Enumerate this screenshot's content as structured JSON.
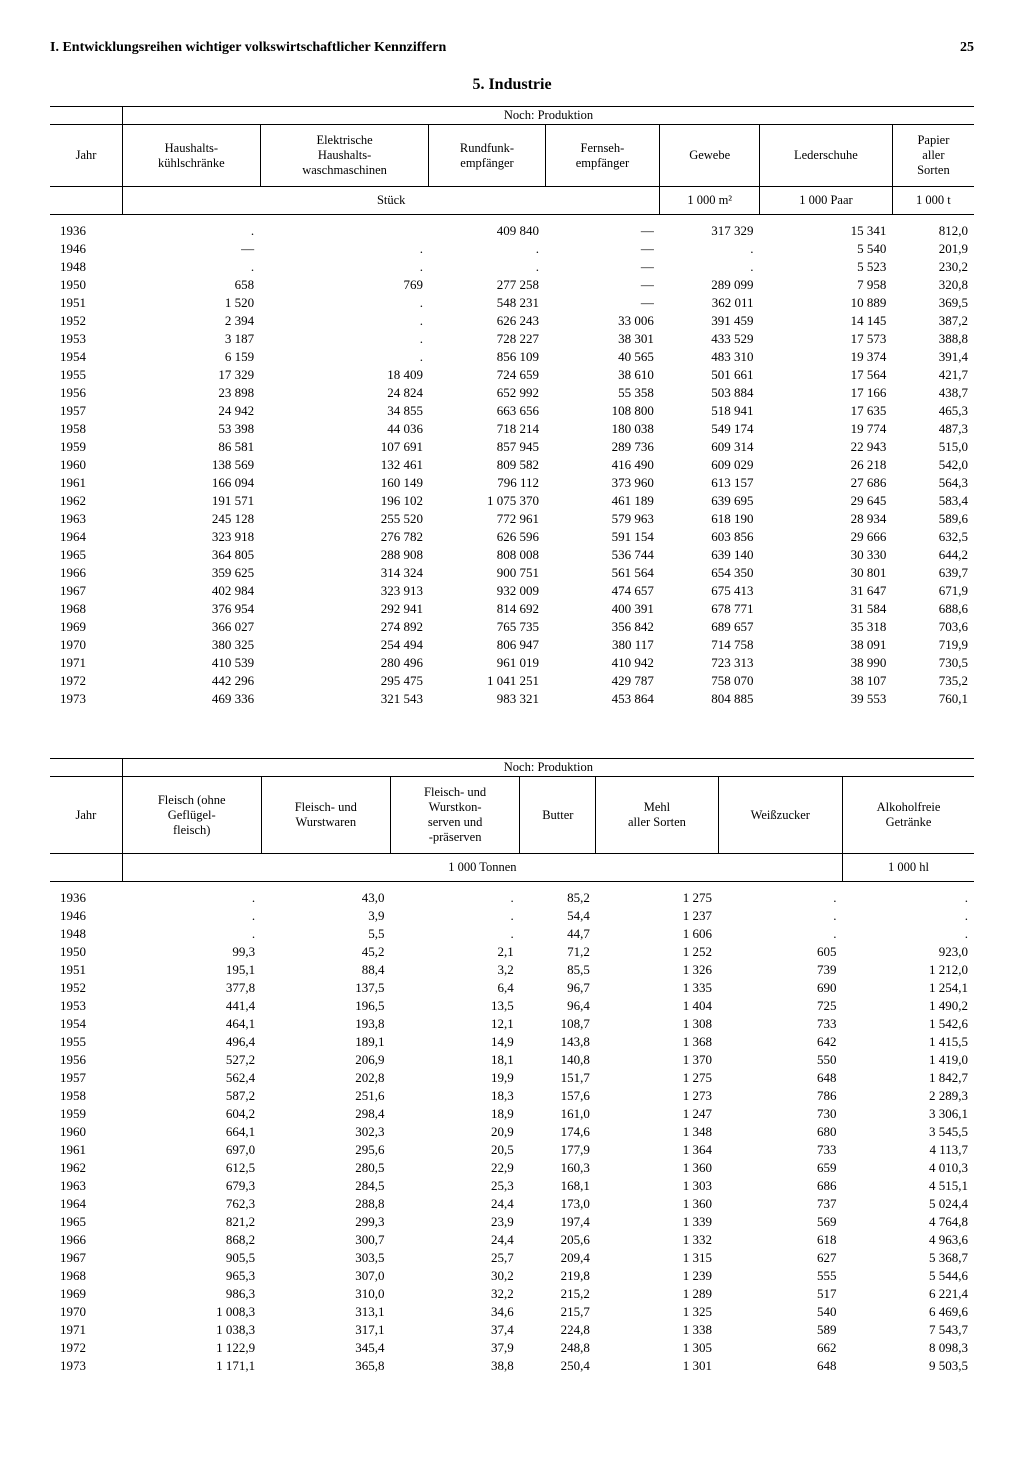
{
  "header": {
    "running_title": "I. Entwicklungsreihen wichtiger volkswirtschaftlicher Kennziffern",
    "page_number": "25",
    "section_title": "5. Industrie"
  },
  "table1": {
    "group_title": "Noch: Produktion",
    "col_year": "Jahr",
    "columns": [
      "Haushalts-\nkühlschränke",
      "Elektrische\nHaushalts-\nwaschmaschinen",
      "Rundfunk-\nempfänger",
      "Fernseh-\nempfänger",
      "Gewebe",
      "Lederschuhe",
      "Papier\naller\nSorten"
    ],
    "unit_group1": "Stück",
    "unit_gewebe": "1 000 m²",
    "unit_leder": "1 000 Paar",
    "unit_papier": "1 000 t",
    "rows": [
      [
        "1936",
        ".",
        "",
        "409 840",
        "—",
        "317 329",
        "15 341",
        "812,0"
      ],
      [
        "1946",
        "—",
        ".",
        ".",
        "—",
        ".",
        "5 540",
        "201,9"
      ],
      [
        "1948",
        ".",
        ".",
        ".",
        "—",
        ".",
        "5 523",
        "230,2"
      ],
      [
        "1950",
        "658",
        "769",
        "277 258",
        "—",
        "289 099",
        "7 958",
        "320,8"
      ],
      [
        "1951",
        "1 520",
        ".",
        "548 231",
        "—",
        "362 011",
        "10 889",
        "369,5"
      ],
      [
        "1952",
        "2 394",
        ".",
        "626 243",
        "33 006",
        "391 459",
        "14 145",
        "387,2"
      ],
      [
        "1953",
        "3 187",
        ".",
        "728 227",
        "38 301",
        "433 529",
        "17 573",
        "388,8"
      ],
      [
        "1954",
        "6 159",
        ".",
        "856 109",
        "40 565",
        "483 310",
        "19 374",
        "391,4"
      ],
      [
        "1955",
        "17 329",
        "18 409",
        "724 659",
        "38 610",
        "501 661",
        "17 564",
        "421,7"
      ],
      [
        "1956",
        "23 898",
        "24 824",
        "652 992",
        "55 358",
        "503 884",
        "17 166",
        "438,7"
      ],
      [
        "1957",
        "24 942",
        "34 855",
        "663 656",
        "108 800",
        "518 941",
        "17 635",
        "465,3"
      ],
      [
        "1958",
        "53 398",
        "44 036",
        "718 214",
        "180 038",
        "549 174",
        "19 774",
        "487,3"
      ],
      [
        "1959",
        "86 581",
        "107 691",
        "857 945",
        "289 736",
        "609 314",
        "22 943",
        "515,0"
      ],
      [
        "1960",
        "138 569",
        "132 461",
        "809 582",
        "416 490",
        "609 029",
        "26 218",
        "542,0"
      ],
      [
        "1961",
        "166 094",
        "160 149",
        "796 112",
        "373 960",
        "613 157",
        "27 686",
        "564,3"
      ],
      [
        "1962",
        "191 571",
        "196 102",
        "1 075 370",
        "461 189",
        "639 695",
        "29 645",
        "583,4"
      ],
      [
        "1963",
        "245 128",
        "255 520",
        "772 961",
        "579 963",
        "618 190",
        "28 934",
        "589,6"
      ],
      [
        "1964",
        "323 918",
        "276 782",
        "626 596",
        "591 154",
        "603 856",
        "29 666",
        "632,5"
      ],
      [
        "1965",
        "364 805",
        "288 908",
        "808 008",
        "536 744",
        "639 140",
        "30 330",
        "644,2"
      ],
      [
        "1966",
        "359 625",
        "314 324",
        "900 751",
        "561 564",
        "654 350",
        "30 801",
        "639,7"
      ],
      [
        "1967",
        "402 984",
        "323 913",
        "932 009",
        "474 657",
        "675 413",
        "31 647",
        "671,9"
      ],
      [
        "1968",
        "376 954",
        "292 941",
        "814 692",
        "400 391",
        "678 771",
        "31 584",
        "688,6"
      ],
      [
        "1969",
        "366 027",
        "274 892",
        "765 735",
        "356 842",
        "689 657",
        "35 318",
        "703,6"
      ],
      [
        "1970",
        "380 325",
        "254 494",
        "806 947",
        "380 117",
        "714 758",
        "38 091",
        "719,9"
      ],
      [
        "1971",
        "410 539",
        "280 496",
        "961 019",
        "410 942",
        "723 313",
        "38 990",
        "730,5"
      ],
      [
        "1972",
        "442 296",
        "295 475",
        "1 041 251",
        "429 787",
        "758 070",
        "38 107",
        "735,2"
      ],
      [
        "1973",
        "469 336",
        "321 543",
        "983 321",
        "453 864",
        "804 885",
        "39 553",
        "760,1"
      ]
    ]
  },
  "table2": {
    "group_title": "Noch: Produktion",
    "col_year": "Jahr",
    "columns": [
      "Fleisch (ohne\nGeflügel-\nfleisch)",
      "Fleisch- und\nWurstwaren",
      "Fleisch- und\nWurstkon-\nserven und\n-präserven",
      "Butter",
      "Mehl\naller Sorten",
      "Weißzucker",
      "Alkoholfreie\nGetränke"
    ],
    "unit_group1": "1 000 Tonnen",
    "unit_last": "1 000 hl",
    "rows": [
      [
        "1936",
        ".",
        "43,0",
        ".",
        "85,2",
        "1 275",
        ".",
        "."
      ],
      [
        "1946",
        ".",
        "3,9",
        ".",
        "54,4",
        "1 237",
        ".",
        "."
      ],
      [
        "1948",
        ".",
        "5,5",
        ".",
        "44,7",
        "1 606",
        ".",
        "."
      ],
      [
        "1950",
        "99,3",
        "45,2",
        "2,1",
        "71,2",
        "1 252",
        "605",
        "923,0"
      ],
      [
        "1951",
        "195,1",
        "88,4",
        "3,2",
        "85,5",
        "1 326",
        "739",
        "1 212,0"
      ],
      [
        "1952",
        "377,8",
        "137,5",
        "6,4",
        "96,7",
        "1 335",
        "690",
        "1 254,1"
      ],
      [
        "1953",
        "441,4",
        "196,5",
        "13,5",
        "96,4",
        "1 404",
        "725",
        "1 490,2"
      ],
      [
        "1954",
        "464,1",
        "193,8",
        "12,1",
        "108,7",
        "1 308",
        "733",
        "1 542,6"
      ],
      [
        "1955",
        "496,4",
        "189,1",
        "14,9",
        "143,8",
        "1 368",
        "642",
        "1 415,5"
      ],
      [
        "1956",
        "527,2",
        "206,9",
        "18,1",
        "140,8",
        "1 370",
        "550",
        "1 419,0"
      ],
      [
        "1957",
        "562,4",
        "202,8",
        "19,9",
        "151,7",
        "1 275",
        "648",
        "1 842,7"
      ],
      [
        "1958",
        "587,2",
        "251,6",
        "18,3",
        "157,6",
        "1 273",
        "786",
        "2 289,3"
      ],
      [
        "1959",
        "604,2",
        "298,4",
        "18,9",
        "161,0",
        "1 247",
        "730",
        "3 306,1"
      ],
      [
        "1960",
        "664,1",
        "302,3",
        "20,9",
        "174,6",
        "1 348",
        "680",
        "3 545,5"
      ],
      [
        "1961",
        "697,0",
        "295,6",
        "20,5",
        "177,9",
        "1 364",
        "733",
        "4 113,7"
      ],
      [
        "1962",
        "612,5",
        "280,5",
        "22,9",
        "160,3",
        "1 360",
        "659",
        "4 010,3"
      ],
      [
        "1963",
        "679,3",
        "284,5",
        "25,3",
        "168,1",
        "1 303",
        "686",
        "4 515,1"
      ],
      [
        "1964",
        "762,3",
        "288,8",
        "24,4",
        "173,0",
        "1 360",
        "737",
        "5 024,4"
      ],
      [
        "1965",
        "821,2",
        "299,3",
        "23,9",
        "197,4",
        "1 339",
        "569",
        "4 764,8"
      ],
      [
        "1966",
        "868,2",
        "300,7",
        "24,4",
        "205,6",
        "1 332",
        "618",
        "4 963,6"
      ],
      [
        "1967",
        "905,5",
        "303,5",
        "25,7",
        "209,4",
        "1 315",
        "627",
        "5 368,7"
      ],
      [
        "1968",
        "965,3",
        "307,0",
        "30,2",
        "219,8",
        "1 239",
        "555",
        "5 544,6"
      ],
      [
        "1969",
        "986,3",
        "310,0",
        "32,2",
        "215,2",
        "1 289",
        "517",
        "6 221,4"
      ],
      [
        "1970",
        "1 008,3",
        "313,1",
        "34,6",
        "215,7",
        "1 325",
        "540",
        "6 469,6"
      ],
      [
        "1971",
        "1 038,3",
        "317,1",
        "37,4",
        "224,8",
        "1 338",
        "589",
        "7 543,7"
      ],
      [
        "1972",
        "1 122,9",
        "345,4",
        "37,9",
        "248,8",
        "1 305",
        "662",
        "8 098,3"
      ],
      [
        "1973",
        "1 171,1",
        "365,8",
        "38,8",
        "250,4",
        "1 301",
        "648",
        "9 503,5"
      ]
    ]
  }
}
